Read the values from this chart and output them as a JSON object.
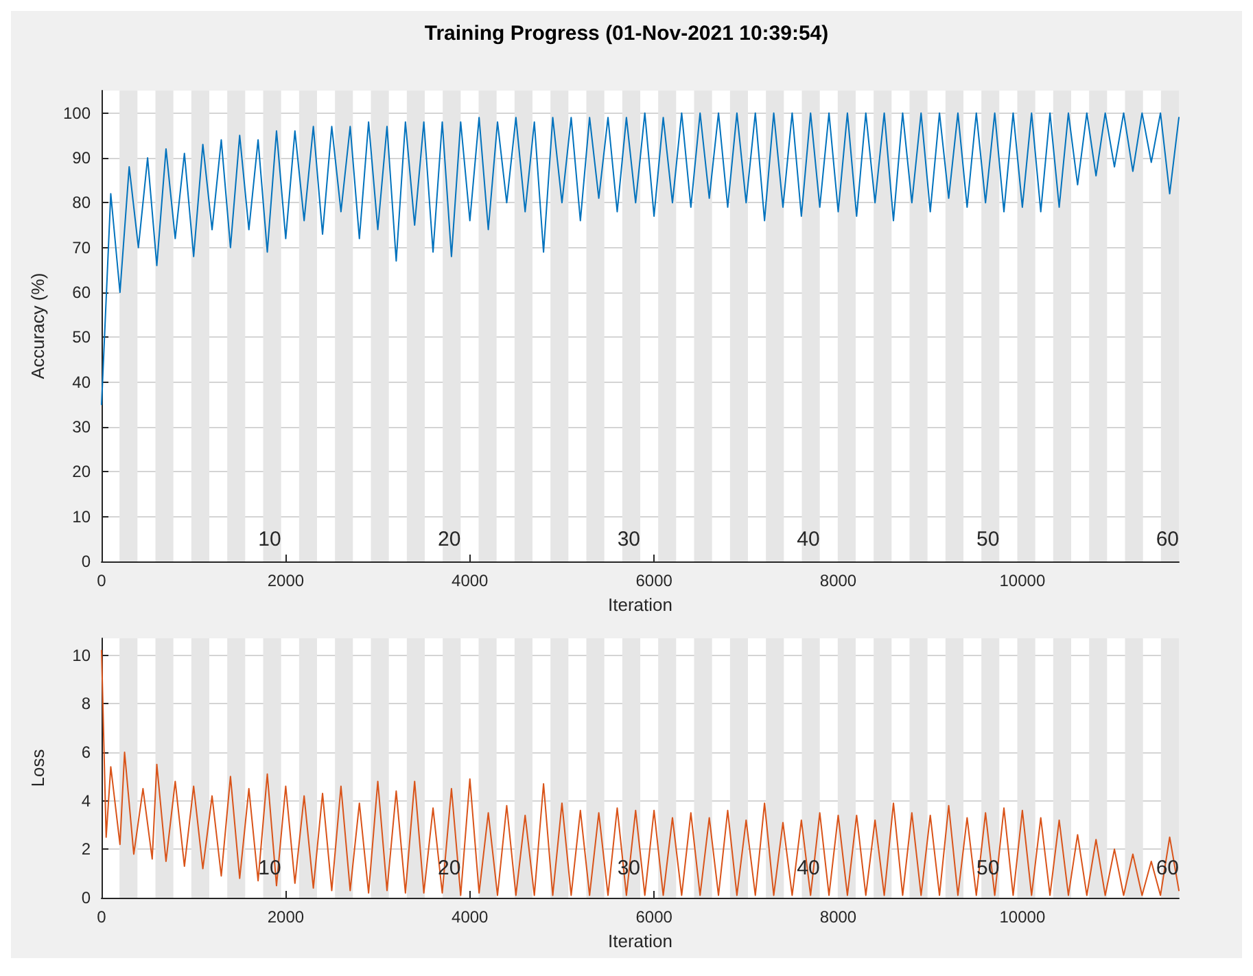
{
  "chart_data": [
    {
      "type": "line",
      "title": "Training Progress (01-Nov-2021 10:39:54)",
      "xlabel": "Iteration",
      "ylabel": "Accuracy (%)",
      "xlim": [
        0,
        11700
      ],
      "xticks": [
        0,
        2000,
        4000,
        6000,
        8000,
        10000
      ],
      "ylim": [
        0,
        105
      ],
      "yticks": [
        0,
        10,
        20,
        30,
        40,
        50,
        60,
        70,
        80,
        90,
        100
      ],
      "grid": "y",
      "marker": "none",
      "line_style": "solid",
      "x": [
        0,
        100,
        200,
        300,
        400,
        500,
        600,
        700,
        800,
        900,
        1000,
        1100,
        1200,
        1300,
        1400,
        1500,
        1600,
        1700,
        1800,
        1900,
        2000,
        2100,
        2200,
        2300,
        2400,
        2500,
        2600,
        2700,
        2800,
        2900,
        3000,
        3100,
        3200,
        3300,
        3400,
        3500,
        3600,
        3700,
        3800,
        3900,
        4000,
        4100,
        4200,
        4300,
        4400,
        4500,
        4600,
        4700,
        4800,
        4900,
        5000,
        5100,
        5200,
        5300,
        5400,
        5500,
        5600,
        5700,
        5800,
        5900,
        6000,
        6100,
        6200,
        6300,
        6400,
        6500,
        6600,
        6700,
        6800,
        6900,
        7000,
        7100,
        7200,
        7300,
        7400,
        7500,
        7600,
        7700,
        7800,
        7900,
        8000,
        8100,
        8200,
        8300,
        8400,
        8500,
        8600,
        8700,
        8800,
        8900,
        9000,
        9100,
        9200,
        9300,
        9400,
        9500,
        9600,
        9700,
        9800,
        9900,
        10000,
        10100,
        10200,
        10300,
        10400,
        10500,
        10600,
        10700,
        10800,
        10900,
        11000,
        11100,
        11200,
        11300,
        11400,
        11500,
        11600,
        11700
      ],
      "series": [
        {
          "color": "#0072bd",
          "values": [
            35,
            82,
            60,
            88,
            70,
            90,
            66,
            92,
            72,
            91,
            68,
            93,
            74,
            94,
            70,
            95,
            74,
            94,
            69,
            96,
            72,
            96,
            76,
            97,
            73,
            97,
            78,
            97,
            72,
            98,
            74,
            97,
            67,
            98,
            75,
            98,
            69,
            98,
            68,
            98,
            76,
            99,
            74,
            98,
            80,
            99,
            78,
            98,
            69,
            99,
            80,
            99,
            76,
            99,
            81,
            99,
            78,
            99,
            80,
            100,
            77,
            99,
            80,
            100,
            79,
            100,
            81,
            100,
            79,
            100,
            80,
            100,
            76,
            100,
            79,
            100,
            77,
            100,
            79,
            100,
            78,
            100,
            77,
            100,
            80,
            100,
            76,
            100,
            80,
            100,
            78,
            100,
            81,
            100,
            79,
            100,
            80,
            100,
            78,
            100,
            79,
            100,
            78,
            100,
            79,
            100,
            84,
            100,
            86,
            100,
            88,
            100,
            87,
            100,
            89,
            100,
            82,
            99
          ]
        }
      ],
      "bands": [
        {
          "axis": "x",
          "from": 195,
          "to": 390,
          "color": "#e6e6e6"
        },
        {
          "axis": "x",
          "from": 585,
          "to": 780,
          "color": "#e6e6e6"
        },
        {
          "axis": "x",
          "from": 975,
          "to": 1170,
          "color": "#e6e6e6"
        },
        {
          "axis": "x",
          "from": 1365,
          "to": 1560,
          "color": "#e6e6e6"
        },
        {
          "axis": "x",
          "from": 1755,
          "to": 1950,
          "color": "#e6e6e6"
        },
        {
          "axis": "x",
          "from": 2145,
          "to": 2340,
          "color": "#e6e6e6"
        },
        {
          "axis": "x",
          "from": 2535,
          "to": 2730,
          "color": "#e6e6e6"
        },
        {
          "axis": "x",
          "from": 2925,
          "to": 3120,
          "color": "#e6e6e6"
        },
        {
          "axis": "x",
          "from": 3315,
          "to": 3510,
          "color": "#e6e6e6"
        },
        {
          "axis": "x",
          "from": 3705,
          "to": 3900,
          "color": "#e6e6e6"
        },
        {
          "axis": "x",
          "from": 4095,
          "to": 4290,
          "color": "#e6e6e6"
        },
        {
          "axis": "x",
          "from": 4485,
          "to": 4680,
          "color": "#e6e6e6"
        },
        {
          "axis": "x",
          "from": 4875,
          "to": 5070,
          "color": "#e6e6e6"
        },
        {
          "axis": "x",
          "from": 5265,
          "to": 5460,
          "color": "#e6e6e6"
        },
        {
          "axis": "x",
          "from": 5655,
          "to": 5850,
          "color": "#e6e6e6"
        },
        {
          "axis": "x",
          "from": 6045,
          "to": 6240,
          "color": "#e6e6e6"
        },
        {
          "axis": "x",
          "from": 6435,
          "to": 6630,
          "color": "#e6e6e6"
        },
        {
          "axis": "x",
          "from": 6825,
          "to": 7020,
          "color": "#e6e6e6"
        },
        {
          "axis": "x",
          "from": 7215,
          "to": 7410,
          "color": "#e6e6e6"
        },
        {
          "axis": "x",
          "from": 7605,
          "to": 7800,
          "color": "#e6e6e6"
        },
        {
          "axis": "x",
          "from": 7995,
          "to": 8190,
          "color": "#e6e6e6"
        },
        {
          "axis": "x",
          "from": 8385,
          "to": 8580,
          "color": "#e6e6e6"
        },
        {
          "axis": "x",
          "from": 8775,
          "to": 8970,
          "color": "#e6e6e6"
        },
        {
          "axis": "x",
          "from": 9165,
          "to": 9360,
          "color": "#e6e6e6"
        },
        {
          "axis": "x",
          "from": 9555,
          "to": 9750,
          "color": "#e6e6e6"
        },
        {
          "axis": "x",
          "from": 9945,
          "to": 10140,
          "color": "#e6e6e6"
        },
        {
          "axis": "x",
          "from": 10335,
          "to": 10530,
          "color": "#e6e6e6"
        },
        {
          "axis": "x",
          "from": 10725,
          "to": 10920,
          "color": "#e6e6e6"
        },
        {
          "axis": "x",
          "from": 11115,
          "to": 11310,
          "color": "#e6e6e6"
        },
        {
          "axis": "x",
          "from": 11505,
          "to": 11700,
          "color": "#e6e6e6"
        }
      ],
      "annotations": [
        {
          "text": "10",
          "x": 1950,
          "y": 1
        },
        {
          "text": "20",
          "x": 3900,
          "y": 1
        },
        {
          "text": "30",
          "x": 5850,
          "y": 1
        },
        {
          "text": "40",
          "x": 7800,
          "y": 1
        },
        {
          "text": "50",
          "x": 9750,
          "y": 1
        },
        {
          "text": "60",
          "x": 11700,
          "y": 1
        }
      ]
    },
    {
      "type": "line",
      "xlabel": "Iteration",
      "ylabel": "Loss",
      "xlim": [
        0,
        11700
      ],
      "xticks": [
        0,
        2000,
        4000,
        6000,
        8000,
        10000
      ],
      "ylim": [
        0,
        10.7
      ],
      "yticks": [
        0,
        2,
        4,
        6,
        8,
        10
      ],
      "grid": "y",
      "marker": "none",
      "line_style": "solid",
      "x": [
        0,
        50,
        100,
        200,
        250,
        350,
        450,
        550,
        600,
        700,
        800,
        900,
        1000,
        1100,
        1200,
        1300,
        1400,
        1500,
        1600,
        1700,
        1800,
        1900,
        2000,
        2100,
        2200,
        2300,
        2400,
        2500,
        2600,
        2700,
        2800,
        2900,
        3000,
        3100,
        3200,
        3300,
        3400,
        3500,
        3600,
        3700,
        3800,
        3900,
        4000,
        4100,
        4200,
        4300,
        4400,
        4500,
        4600,
        4700,
        4800,
        4900,
        5000,
        5100,
        5200,
        5300,
        5400,
        5500,
        5600,
        5700,
        5800,
        5900,
        6000,
        6100,
        6200,
        6300,
        6400,
        6500,
        6600,
        6700,
        6800,
        6900,
        7000,
        7100,
        7200,
        7300,
        7400,
        7500,
        7600,
        7700,
        7800,
        7900,
        8000,
        8100,
        8200,
        8300,
        8400,
        8500,
        8600,
        8700,
        8800,
        8900,
        9000,
        9100,
        9200,
        9300,
        9400,
        9500,
        9600,
        9700,
        9800,
        9900,
        10000,
        10100,
        10200,
        10300,
        10400,
        10500,
        10600,
        10700,
        10800,
        10900,
        11000,
        11100,
        11200,
        11300,
        11400,
        11500,
        11600,
        11700
      ],
      "series": [
        {
          "color": "#d95319",
          "values": [
            10.2,
            2.5,
            5.4,
            2.2,
            6.0,
            1.8,
            4.5,
            1.6,
            5.5,
            1.5,
            4.8,
            1.3,
            4.6,
            1.2,
            4.2,
            0.9,
            5.0,
            0.8,
            4.5,
            0.7,
            5.1,
            0.5,
            4.6,
            0.6,
            4.2,
            0.4,
            4.3,
            0.3,
            4.6,
            0.3,
            3.9,
            0.2,
            4.8,
            0.3,
            4.4,
            0.2,
            4.8,
            0.2,
            3.7,
            0.2,
            4.5,
            0.1,
            4.9,
            0.2,
            3.5,
            0.1,
            3.8,
            0.1,
            3.4,
            0.1,
            4.7,
            0.1,
            3.9,
            0.1,
            3.6,
            0.1,
            3.5,
            0.1,
            3.7,
            0.1,
            3.6,
            0.1,
            3.6,
            0.1,
            3.3,
            0.1,
            3.5,
            0.1,
            3.3,
            0.1,
            3.6,
            0.1,
            3.2,
            0.1,
            3.9,
            0.1,
            3.1,
            0.1,
            3.2,
            0.1,
            3.5,
            0.1,
            3.4,
            0.1,
            3.4,
            0.1,
            3.2,
            0.1,
            3.9,
            0.1,
            3.5,
            0.1,
            3.4,
            0.1,
            3.8,
            0.1,
            3.3,
            0.1,
            3.5,
            0.1,
            3.7,
            0.1,
            3.6,
            0.1,
            3.3,
            0.1,
            3.2,
            0.1,
            2.6,
            0.1,
            2.4,
            0.1,
            2.0,
            0.1,
            1.8,
            0.1,
            1.5,
            0.1,
            2.5,
            0.3
          ]
        }
      ],
      "bands": [
        {
          "axis": "x",
          "from": 195,
          "to": 390,
          "color": "#e6e6e6"
        },
        {
          "axis": "x",
          "from": 585,
          "to": 780,
          "color": "#e6e6e6"
        },
        {
          "axis": "x",
          "from": 975,
          "to": 1170,
          "color": "#e6e6e6"
        },
        {
          "axis": "x",
          "from": 1365,
          "to": 1560,
          "color": "#e6e6e6"
        },
        {
          "axis": "x",
          "from": 1755,
          "to": 1950,
          "color": "#e6e6e6"
        },
        {
          "axis": "x",
          "from": 2145,
          "to": 2340,
          "color": "#e6e6e6"
        },
        {
          "axis": "x",
          "from": 2535,
          "to": 2730,
          "color": "#e6e6e6"
        },
        {
          "axis": "x",
          "from": 2925,
          "to": 3120,
          "color": "#e6e6e6"
        },
        {
          "axis": "x",
          "from": 3315,
          "to": 3510,
          "color": "#e6e6e6"
        },
        {
          "axis": "x",
          "from": 3705,
          "to": 3900,
          "color": "#e6e6e6"
        },
        {
          "axis": "x",
          "from": 4095,
          "to": 4290,
          "color": "#e6e6e6"
        },
        {
          "axis": "x",
          "from": 4485,
          "to": 4680,
          "color": "#e6e6e6"
        },
        {
          "axis": "x",
          "from": 4875,
          "to": 5070,
          "color": "#e6e6e6"
        },
        {
          "axis": "x",
          "from": 5265,
          "to": 5460,
          "color": "#e6e6e6"
        },
        {
          "axis": "x",
          "from": 5655,
          "to": 5850,
          "color": "#e6e6e6"
        },
        {
          "axis": "x",
          "from": 6045,
          "to": 6240,
          "color": "#e6e6e6"
        },
        {
          "axis": "x",
          "from": 6435,
          "to": 6630,
          "color": "#e6e6e6"
        },
        {
          "axis": "x",
          "from": 6825,
          "to": 7020,
          "color": "#e6e6e6"
        },
        {
          "axis": "x",
          "from": 7215,
          "to": 7410,
          "color": "#e6e6e6"
        },
        {
          "axis": "x",
          "from": 7605,
          "to": 7800,
          "color": "#e6e6e6"
        },
        {
          "axis": "x",
          "from": 7995,
          "to": 8190,
          "color": "#e6e6e6"
        },
        {
          "axis": "x",
          "from": 8385,
          "to": 8580,
          "color": "#e6e6e6"
        },
        {
          "axis": "x",
          "from": 8775,
          "to": 8970,
          "color": "#e6e6e6"
        },
        {
          "axis": "x",
          "from": 9165,
          "to": 9360,
          "color": "#e6e6e6"
        },
        {
          "axis": "x",
          "from": 9555,
          "to": 9750,
          "color": "#e6e6e6"
        },
        {
          "axis": "x",
          "from": 9945,
          "to": 10140,
          "color": "#e6e6e6"
        },
        {
          "axis": "x",
          "from": 10335,
          "to": 10530,
          "color": "#e6e6e6"
        },
        {
          "axis": "x",
          "from": 10725,
          "to": 10920,
          "color": "#e6e6e6"
        },
        {
          "axis": "x",
          "from": 11115,
          "to": 11310,
          "color": "#e6e6e6"
        },
        {
          "axis": "x",
          "from": 11505,
          "to": 11700,
          "color": "#e6e6e6"
        }
      ],
      "annotations": [
        {
          "text": "10",
          "x": 1950,
          "y": 0.5
        },
        {
          "text": "20",
          "x": 3900,
          "y": 0.5
        },
        {
          "text": "30",
          "x": 5850,
          "y": 0.5
        },
        {
          "text": "40",
          "x": 7800,
          "y": 0.5
        },
        {
          "text": "50",
          "x": 9750,
          "y": 0.5
        },
        {
          "text": "60",
          "x": 11700,
          "y": 0.5
        }
      ]
    }
  ]
}
